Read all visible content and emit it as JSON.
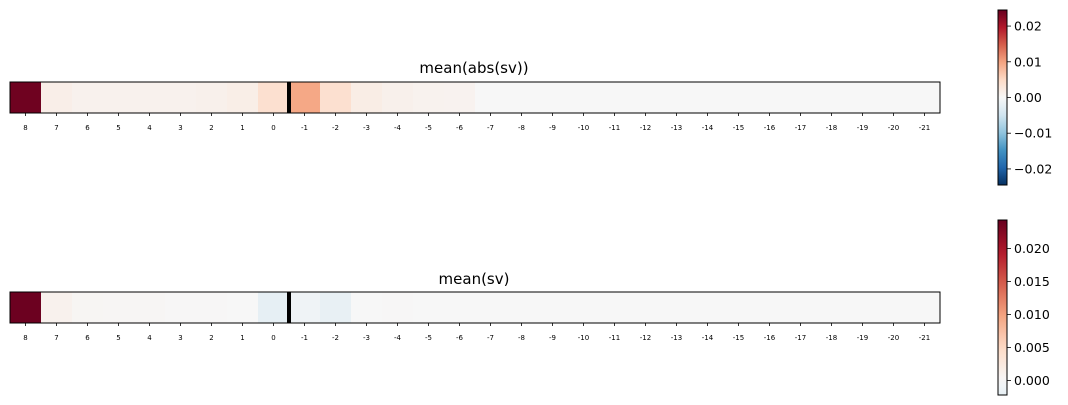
{
  "chart_data": [
    {
      "type": "heatmap",
      "title": "mean(abs(sv))",
      "categories": [
        "8",
        "7",
        "6",
        "5",
        "4",
        "3",
        "2",
        "1",
        "0",
        "-1",
        "-2",
        "-3",
        "-4",
        "-5",
        "-6",
        "-7",
        "-8",
        "-9",
        "-10",
        "-11",
        "-12",
        "-13",
        "-14",
        "-15",
        "-16",
        "-17",
        "-18",
        "-19",
        "-20",
        "-21"
      ],
      "values": [
        0.024,
        0.0015,
        0.001,
        0.001,
        0.001,
        0.001,
        0.0012,
        0.0016,
        0.004,
        0.0095,
        0.004,
        0.0018,
        0.0012,
        0.0009,
        0.0008,
        0,
        0,
        0,
        0,
        0,
        0,
        0,
        0,
        0,
        0,
        0,
        0,
        0,
        0,
        0
      ],
      "separator_after_index": 8,
      "colormap": "RdBu_r",
      "colorbar": {
        "range": [
          -0.0245,
          0.0245
        ],
        "ticks": [
          0.02,
          0.01,
          0.0,
          -0.01,
          -0.02
        ],
        "tick_labels": [
          "0.02",
          "0.01",
          "0.00",
          "−0.01",
          "−0.02"
        ]
      }
    },
    {
      "type": "heatmap",
      "title": "mean(sv)",
      "categories": [
        "8",
        "7",
        "6",
        "5",
        "4",
        "3",
        "2",
        "1",
        "0",
        "-1",
        "-2",
        "-3",
        "-4",
        "-5",
        "-6",
        "-7",
        "-8",
        "-9",
        "-10",
        "-11",
        "-12",
        "-13",
        "-14",
        "-15",
        "-16",
        "-17",
        "-18",
        "-19",
        "-20",
        "-21"
      ],
      "values": [
        0.024,
        0.001,
        0.0004,
        0.0003,
        0.0003,
        0.0001,
        0.0001,
        0.0,
        -0.0022,
        -0.001,
        -0.0019,
        0.0,
        0.0001,
        0.0,
        0.0,
        0,
        0,
        0,
        0,
        0,
        0,
        0,
        0,
        0,
        0,
        0,
        0,
        0,
        0,
        0
      ],
      "separator_after_index": 8,
      "colormap": "RdBu_r",
      "colorbar": {
        "range": [
          -0.0022,
          0.0243
        ],
        "ticks": [
          0.02,
          0.015,
          0.01,
          0.005,
          0.0
        ],
        "tick_labels": [
          "0.020",
          "0.015",
          "0.010",
          "0.005",
          "0.000"
        ]
      }
    }
  ]
}
